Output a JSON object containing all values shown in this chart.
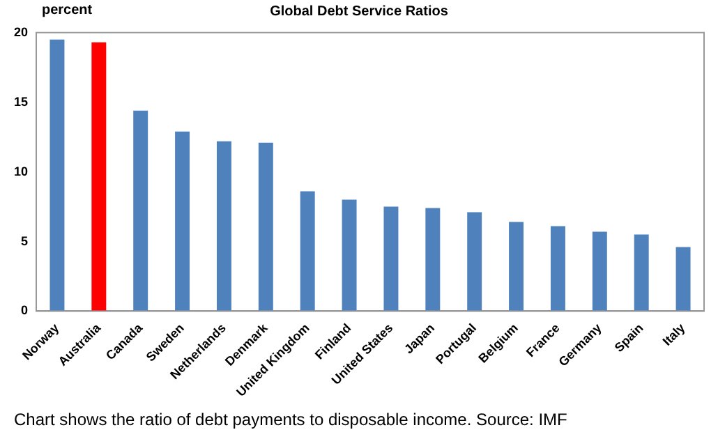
{
  "chart_data": {
    "type": "bar",
    "title": "Global Debt Service Ratios",
    "ylabel": "percent",
    "categories": [
      "Norway",
      "Australia",
      "Canada",
      "Sweden",
      "Netherlands",
      "Denmark",
      "United Kingdom",
      "Finland",
      "United States",
      "Japan",
      "Portugal",
      "Belgium",
      "France",
      "Germany",
      "Spain",
      "Italy"
    ],
    "values": [
      19.5,
      19.3,
      14.4,
      12.9,
      12.2,
      12.1,
      8.6,
      8.0,
      7.5,
      7.4,
      7.1,
      6.4,
      6.1,
      5.7,
      5.5,
      4.6
    ],
    "colors": [
      "#4f81bd",
      "#ff0000",
      "#4f81bd",
      "#4f81bd",
      "#4f81bd",
      "#4f81bd",
      "#4f81bd",
      "#4f81bd",
      "#4f81bd",
      "#4f81bd",
      "#4f81bd",
      "#4f81bd",
      "#4f81bd",
      "#4f81bd",
      "#4f81bd",
      "#4f81bd"
    ],
    "ylim": [
      0,
      20
    ],
    "yticks": [
      0,
      5,
      10,
      15,
      20
    ],
    "grid": false,
    "legend": false,
    "annotations": [
      "Chart shows the ratio of debt payments to disposable income. Source: IMF"
    ]
  }
}
